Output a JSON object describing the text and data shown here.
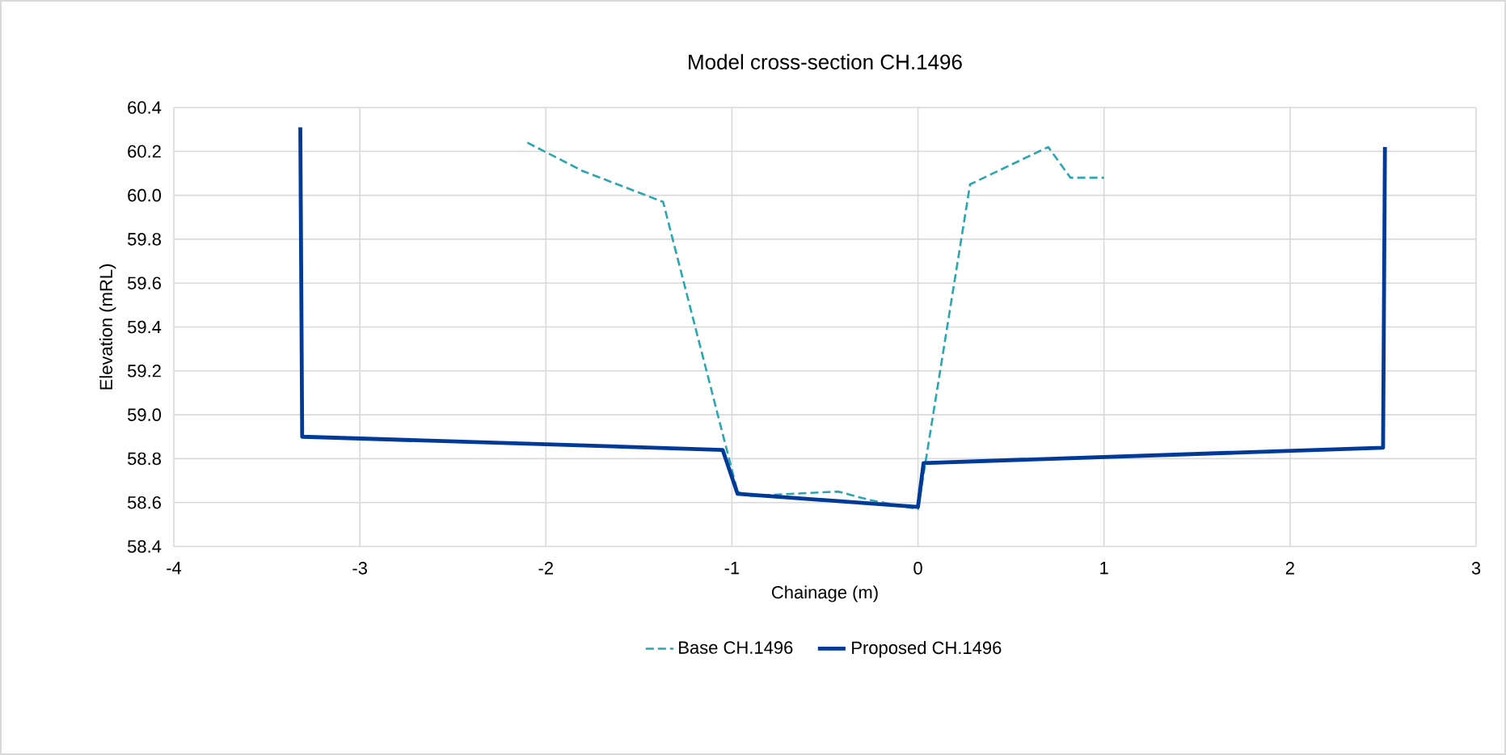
{
  "chart_data": {
    "type": "line",
    "title": "Model cross-section CH.1496",
    "xlabel": "Chainage (m)",
    "ylabel": "Elevation (mRL)",
    "xlim": [
      -4,
      3
    ],
    "xticks": [
      -4,
      -3,
      -2,
      -1,
      0,
      1,
      2,
      3
    ],
    "ylim": [
      58.4,
      60.4
    ],
    "yticks": [
      {
        "value": 58.4,
        "label": "58.4"
      },
      {
        "value": 58.6,
        "label": "58.6"
      },
      {
        "value": 58.8,
        "label": "58.8"
      },
      {
        "value": 59.0,
        "label": "59.0"
      },
      {
        "value": 59.2,
        "label": "59.2"
      },
      {
        "value": 59.4,
        "label": "59.4"
      },
      {
        "value": 59.6,
        "label": "59.6"
      },
      {
        "value": 59.8,
        "label": "59.8"
      },
      {
        "value": 60.0,
        "label": "60.0"
      },
      {
        "value": 60.2,
        "label": "60.2"
      },
      {
        "value": 60.4,
        "label": "60.4"
      }
    ],
    "grid": true,
    "legend": "bottom",
    "marker": "none",
    "series": [
      {
        "name": "Base CH.1496",
        "color": "#2aa6b0",
        "line_style": "dashed",
        "x": [
          -2.1,
          -1.8,
          -1.37,
          -0.97,
          -0.92,
          -0.43,
          -0.25,
          0,
          0.28,
          0.7,
          0.82,
          1
        ],
        "values": [
          60.24,
          60.11,
          59.97,
          58.65,
          58.63,
          58.65,
          58.61,
          58.57,
          60.05,
          60.22,
          60.08,
          60.08
        ]
      },
      {
        "name": "Proposed CH.1496",
        "color": "#003a99",
        "line_style": "solid",
        "x": [
          -3.32,
          -3.31,
          -1.05,
          -0.97,
          0,
          0.03,
          2.5,
          2.51
        ],
        "values": [
          60.31,
          58.9,
          58.84,
          58.64,
          58.58,
          58.78,
          58.85,
          60.22
        ]
      }
    ]
  }
}
